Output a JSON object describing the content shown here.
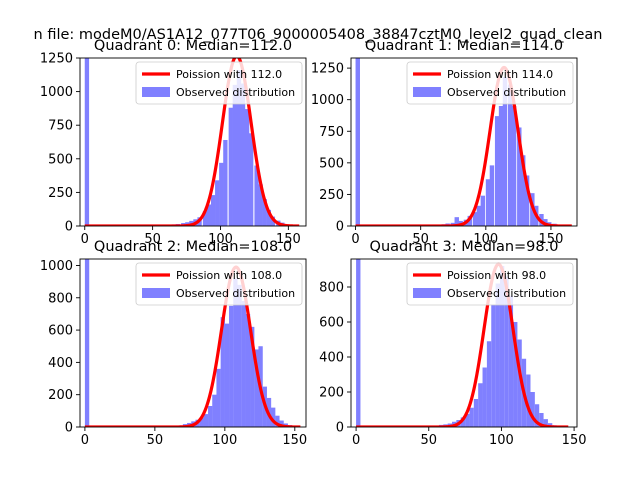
{
  "figure": {
    "suptitle": "n file: modeM0/AS1A12_077T06_9000005408_38847cztM0_level2_quad_clean"
  },
  "chart_data": [
    {
      "type": "bar",
      "title": "Quadrant 0: Median=112.0",
      "xlim": [
        -3.5,
        163
      ],
      "ylim": [
        0,
        1250
      ],
      "xticks": [
        0,
        50,
        100,
        150
      ],
      "yticks": [
        0,
        250,
        500,
        750,
        1000,
        1250
      ],
      "poisson_mean": 112.0,
      "poisson_peak": 1265,
      "poisson_xrange": [
        0,
        158
      ],
      "bin_width": 3.2,
      "bars": [
        {
          "x": 0,
          "y": 1250
        },
        {
          "x": 61,
          "y": 8
        },
        {
          "x": 64,
          "y": 12
        },
        {
          "x": 67,
          "y": 15
        },
        {
          "x": 71,
          "y": 22
        },
        {
          "x": 74,
          "y": 28
        },
        {
          "x": 77,
          "y": 38
        },
        {
          "x": 80,
          "y": 50
        },
        {
          "x": 83,
          "y": 65
        },
        {
          "x": 87,
          "y": 110
        },
        {
          "x": 90,
          "y": 160
        },
        {
          "x": 93,
          "y": 230
        },
        {
          "x": 96,
          "y": 340
        },
        {
          "x": 99,
          "y": 470
        },
        {
          "x": 102,
          "y": 640
        },
        {
          "x": 106,
          "y": 880
        },
        {
          "x": 109,
          "y": 1050
        },
        {
          "x": 112,
          "y": 1160
        },
        {
          "x": 115,
          "y": 1060
        },
        {
          "x": 118,
          "y": 870
        },
        {
          "x": 121,
          "y": 690
        },
        {
          "x": 125,
          "y": 450
        },
        {
          "x": 128,
          "y": 310
        },
        {
          "x": 131,
          "y": 200
        },
        {
          "x": 134,
          "y": 120
        },
        {
          "x": 137,
          "y": 70
        },
        {
          "x": 141,
          "y": 40
        },
        {
          "x": 144,
          "y": 25
        },
        {
          "x": 147,
          "y": 12
        },
        {
          "x": 150,
          "y": 6
        },
        {
          "x": 154,
          "y": 3
        }
      ],
      "legend": {
        "line": "Poission with 112.0",
        "bars": "Observed distribution",
        "position": "upper right"
      }
    },
    {
      "type": "bar",
      "title": "Quadrant 1: Median=114.0",
      "xlim": [
        -3.5,
        170
      ],
      "ylim": [
        0,
        1330
      ],
      "xticks": [
        0,
        50,
        100,
        150
      ],
      "yticks": [
        0,
        250,
        500,
        750,
        1000,
        1250
      ],
      "poisson_mean": 114.0,
      "poisson_peak": 1255,
      "poisson_xrange": [
        0,
        166
      ],
      "bin_width": 3.4,
      "bars": [
        {
          "x": 0,
          "y": 1330
        },
        {
          "x": 62,
          "y": 8
        },
        {
          "x": 66,
          "y": 14
        },
        {
          "x": 69,
          "y": 20
        },
        {
          "x": 73,
          "y": 25
        },
        {
          "x": 76,
          "y": 70
        },
        {
          "x": 79,
          "y": 40
        },
        {
          "x": 83,
          "y": 50
        },
        {
          "x": 86,
          "y": 80
        },
        {
          "x": 90,
          "y": 110
        },
        {
          "x": 93,
          "y": 160
        },
        {
          "x": 96,
          "y": 240
        },
        {
          "x": 100,
          "y": 370
        },
        {
          "x": 103,
          "y": 480
        },
        {
          "x": 107,
          "y": 870
        },
        {
          "x": 110,
          "y": 950
        },
        {
          "x": 113,
          "y": 1180
        },
        {
          "x": 117,
          "y": 1120
        },
        {
          "x": 120,
          "y": 950
        },
        {
          "x": 124,
          "y": 780
        },
        {
          "x": 127,
          "y": 560
        },
        {
          "x": 130,
          "y": 400
        },
        {
          "x": 134,
          "y": 260
        },
        {
          "x": 137,
          "y": 160
        },
        {
          "x": 141,
          "y": 95
        },
        {
          "x": 144,
          "y": 55
        },
        {
          "x": 147,
          "y": 30
        },
        {
          "x": 151,
          "y": 18
        },
        {
          "x": 154,
          "y": 10
        },
        {
          "x": 158,
          "y": 5
        },
        {
          "x": 161,
          "y": 3
        }
      ],
      "legend": {
        "line": "Poission with 114.0",
        "bars": "Observed distribution",
        "position": "upper right"
      }
    },
    {
      "type": "bar",
      "title": "Quadrant 2: Median=108.0",
      "xlim": [
        -3.5,
        158
      ],
      "ylim": [
        0,
        1040
      ],
      "xticks": [
        0,
        50,
        100,
        150
      ],
      "yticks": [
        0,
        200,
        400,
        600,
        800,
        1000
      ],
      "poisson_mean": 108.0,
      "poisson_peak": 990,
      "poisson_xrange": [
        0,
        154
      ],
      "bin_width": 3.1,
      "bars": [
        {
          "x": 0,
          "y": 1040
        },
        {
          "x": 64,
          "y": 6
        },
        {
          "x": 67,
          "y": 10
        },
        {
          "x": 70,
          "y": 18
        },
        {
          "x": 73,
          "y": 25
        },
        {
          "x": 76,
          "y": 35
        },
        {
          "x": 79,
          "y": 45
        },
        {
          "x": 82,
          "y": 60
        },
        {
          "x": 85,
          "y": 80
        },
        {
          "x": 88,
          "y": 130
        },
        {
          "x": 91,
          "y": 200
        },
        {
          "x": 94,
          "y": 360
        },
        {
          "x": 97,
          "y": 680
        },
        {
          "x": 100,
          "y": 640
        },
        {
          "x": 103,
          "y": 750
        },
        {
          "x": 106,
          "y": 920
        },
        {
          "x": 109,
          "y": 880
        },
        {
          "x": 112,
          "y": 780
        },
        {
          "x": 115,
          "y": 700
        },
        {
          "x": 118,
          "y": 620
        },
        {
          "x": 121,
          "y": 480
        },
        {
          "x": 124,
          "y": 500
        },
        {
          "x": 127,
          "y": 250
        },
        {
          "x": 130,
          "y": 180
        },
        {
          "x": 133,
          "y": 120
        },
        {
          "x": 136,
          "y": 70
        },
        {
          "x": 139,
          "y": 40
        },
        {
          "x": 142,
          "y": 22
        },
        {
          "x": 145,
          "y": 12
        },
        {
          "x": 148,
          "y": 6
        },
        {
          "x": 151,
          "y": 3
        }
      ],
      "legend": {
        "line": "Poission with 108.0",
        "bars": "Observed distribution",
        "position": "upper right"
      }
    },
    {
      "type": "bar",
      "title": "Quadrant 3: Median=98.0",
      "xlim": [
        -3.5,
        152
      ],
      "ylim": [
        0,
        960
      ],
      "xticks": [
        0,
        50,
        100,
        150
      ],
      "yticks": [
        0,
        200,
        400,
        600,
        800
      ],
      "poisson_mean": 98.0,
      "poisson_peak": 930,
      "poisson_xrange": [
        0,
        146
      ],
      "bin_width": 3.0,
      "bars": [
        {
          "x": 0,
          "y": 960
        },
        {
          "x": 21,
          "y": 6
        },
        {
          "x": 45,
          "y": 6
        },
        {
          "x": 51,
          "y": 8
        },
        {
          "x": 57,
          "y": 12
        },
        {
          "x": 60,
          "y": 15
        },
        {
          "x": 63,
          "y": 20
        },
        {
          "x": 66,
          "y": 30
        },
        {
          "x": 69,
          "y": 40
        },
        {
          "x": 72,
          "y": 55
        },
        {
          "x": 75,
          "y": 75
        },
        {
          "x": 78,
          "y": 110
        },
        {
          "x": 81,
          "y": 160
        },
        {
          "x": 84,
          "y": 250
        },
        {
          "x": 87,
          "y": 340
        },
        {
          "x": 90,
          "y": 490
        },
        {
          "x": 93,
          "y": 700
        },
        {
          "x": 96,
          "y": 820
        },
        {
          "x": 99,
          "y": 920
        },
        {
          "x": 102,
          "y": 860
        },
        {
          "x": 105,
          "y": 750
        },
        {
          "x": 108,
          "y": 600
        },
        {
          "x": 111,
          "y": 500
        },
        {
          "x": 114,
          "y": 390
        },
        {
          "x": 117,
          "y": 300
        },
        {
          "x": 120,
          "y": 200
        },
        {
          "x": 123,
          "y": 130
        },
        {
          "x": 126,
          "y": 80
        },
        {
          "x": 129,
          "y": 45
        },
        {
          "x": 132,
          "y": 22
        },
        {
          "x": 135,
          "y": 10
        }
      ],
      "legend": {
        "line": "Poission with 98.0",
        "bars": "Observed distribution",
        "position": "upper right"
      }
    }
  ],
  "colors": {
    "bars": "#8080ff",
    "line": "#ff0000",
    "axes": "#000000",
    "background": "#ffffff"
  }
}
